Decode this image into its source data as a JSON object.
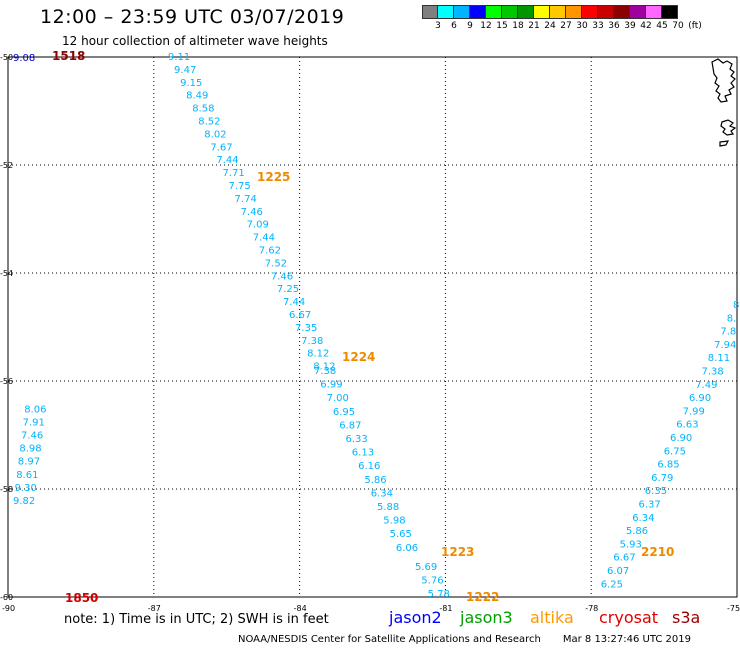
{
  "header": {
    "title": "12:00 – 23:59 UTC 03/07/2019",
    "subtitle": "12 hour collection of altimeter wave heights"
  },
  "colorbar": {
    "unit": "(ft)",
    "labels": [
      "3",
      "6",
      "9",
      "12",
      "15",
      "18",
      "21",
      "24",
      "27",
      "30",
      "33",
      "36",
      "39",
      "42",
      "45",
      "70"
    ],
    "colors": [
      "#7f7f7f",
      "#00ffff",
      "#00b4ff",
      "#0000ff",
      "#00ff00",
      "#00c800",
      "#009600",
      "#ffff00",
      "#ffc800",
      "#ff9600",
      "#ff0000",
      "#c80000",
      "#8c0000",
      "#a000a0",
      "#ff66ff",
      "#000000"
    ]
  },
  "map": {
    "lon_ticks": [
      "-90",
      "-87",
      "-84",
      "-81",
      "-78",
      "-75"
    ],
    "lat_ticks": [
      "-50",
      "-52",
      "-54",
      "-56",
      "-58",
      "-60"
    ],
    "tracks": [
      {
        "name": "track-west-ne",
        "color": "#00b4ff",
        "time": {
          "text": "1850",
          "color": "#d00000"
        },
        "values": [
          "9.82",
          "9.30",
          "8.61",
          "8.97",
          "8.98",
          "7.46",
          "7.91",
          "8.06"
        ]
      },
      {
        "name": "track-west-top",
        "color": "#0000cc",
        "time": {
          "text": "1518",
          "color": "#8b0000"
        },
        "values": [
          "9.08"
        ]
      },
      {
        "name": "track-center",
        "color": "#00b4ff",
        "time": {
          "text": "1225",
          "color": "#ee8a00"
        },
        "values": [
          "9.11",
          "9.47",
          "9.15",
          "8.49",
          "8.58",
          "8.52",
          "8.02",
          "7.67",
          "7.44",
          "7.71",
          "7.75",
          "7.74",
          "7.46",
          "7.09",
          "7.44",
          "7.62",
          "7.52",
          "7.46",
          "7.25",
          "7.44",
          "6.67",
          "7.35",
          "7.38",
          "8.12",
          "8.12"
        ]
      },
      {
        "name": "track-center-lower",
        "color": "#00b4ff",
        "time": {
          "text": "1224",
          "color": "#ee8a00"
        },
        "values": [
          "7.38",
          "6.99",
          "7.00",
          "6.95",
          "6.87",
          "6.33",
          "6.13",
          "6.16",
          "5.86",
          "6.34",
          "5.88",
          "5.98",
          "5.65",
          "6.06"
        ]
      },
      {
        "name": "track-center-bottom",
        "color": "#00b4ff",
        "time": {
          "text": "1223",
          "color": "#ee8a00"
        },
        "values": [
          "5.69",
          "5.76",
          "5.78"
        ]
      },
      {
        "name": "track-center-end",
        "color": "#00b4ff",
        "time": {
          "text": "1222",
          "color": "#ee8a00"
        },
        "values": []
      },
      {
        "name": "track-east",
        "color": "#00b4ff",
        "time": {
          "text": "2210",
          "color": "#ee8a00"
        },
        "values": [
          "8.",
          "8.",
          "7.8",
          "7.94",
          "8.11",
          "7.38",
          "7.49",
          "6.90",
          "7.99",
          "6.63",
          "6.90",
          "6.75",
          "6.85",
          "6.79",
          "6.35",
          "6.37",
          "6.34",
          "5.86",
          "5.93",
          "6.67",
          "6.07",
          "6.25"
        ]
      }
    ]
  },
  "legend": {
    "note": "note:  1) Time is in UTC;  2) SWH is in feet",
    "missions": [
      {
        "label": "jason2",
        "color": "#0000ff"
      },
      {
        "label": "jason3",
        "color": "#00a000"
      },
      {
        "label": "altika",
        "color": "#ff9900"
      },
      {
        "label": "cryosat",
        "color": "#e00000"
      },
      {
        "label": "s3a",
        "color": "#990000"
      }
    ]
  },
  "footer": {
    "credit": "NOAA/NESDIS Center for Satellite Applications and Research",
    "timestamp": "Mar  8 13:27:46 UTC 2019"
  }
}
